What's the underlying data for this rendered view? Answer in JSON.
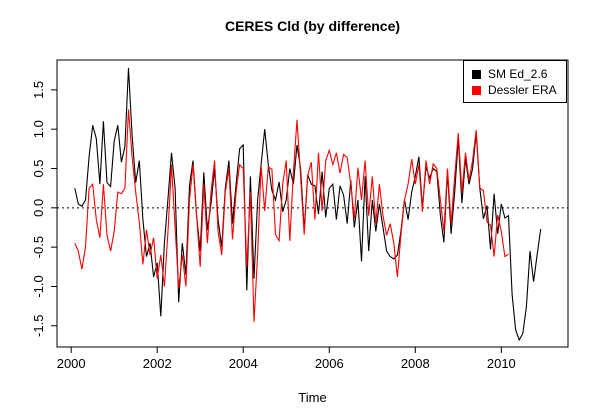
{
  "chart_data": {
    "type": "line",
    "title": "CERES Cld (by difference)",
    "xlabel": "Time",
    "ylabel": "",
    "grid": false,
    "legend_position": "top-right",
    "reference_line_y": 0,
    "xlim": [
      1999.67,
      2011.55
    ],
    "ylim": [
      -1.77,
      1.88
    ],
    "x_ticks": [
      2000,
      2002,
      2004,
      2006,
      2008,
      2010
    ],
    "y_ticks": [
      -1.5,
      -1.0,
      -0.5,
      0.0,
      0.5,
      1.0,
      1.5
    ],
    "x_start": 2000.083,
    "x_step": 0.08333,
    "series": [
      {
        "name": "SM Ed_2.6",
        "color": "#000000",
        "values": [
          0.25,
          0.05,
          0.02,
          0.1,
          0.65,
          1.05,
          0.88,
          0.3,
          1.1,
          0.32,
          0.27,
          0.85,
          1.05,
          0.58,
          0.78,
          1.78,
          0.92,
          0.32,
          0.6,
          -0.15,
          -0.62,
          -0.45,
          -0.88,
          -0.7,
          -1.38,
          -0.45,
          0.12,
          0.7,
          0.25,
          -1.2,
          -0.45,
          -0.85,
          0.28,
          0.6,
          -0.1,
          -0.55,
          0.45,
          -0.28,
          0.05,
          0.5,
          -0.15,
          -0.5,
          0.25,
          0.6,
          -0.2,
          0.3,
          0.75,
          0.8,
          -1.05,
          0.4,
          -0.9,
          0.1,
          0.55,
          1.0,
          0.55,
          0.22,
          0.1,
          0.33,
          -0.05,
          0.1,
          0.5,
          0.3,
          0.8,
          0.5,
          -0.28,
          0.42,
          0.3,
          0.28,
          -0.08,
          0.46,
          -0.12,
          0.25,
          0.3,
          -0.15,
          0.28,
          0.16,
          -0.2,
          0.35,
          -0.25,
          0.1,
          -0.68,
          0.4,
          -0.55,
          0.1,
          -0.3,
          0.05,
          -0.25,
          -0.55,
          -0.62,
          -0.65,
          -0.6,
          -0.3,
          0.1,
          -0.15,
          0.2,
          0.4,
          0.65,
          0.0,
          0.52,
          0.38,
          0.5,
          0.46,
          -0.1,
          -0.44,
          0.46,
          -0.33,
          0.2,
          0.88,
          0.06,
          0.63,
          0.3,
          0.5,
          0.95,
          0.25,
          -0.14,
          0.03,
          -0.53,
          0.18,
          -0.33,
          0.05,
          -0.13,
          -0.1,
          -1.1,
          -1.55,
          -1.68,
          -1.6,
          -1.26,
          -0.55,
          -0.94,
          -0.6,
          -0.27
        ]
      },
      {
        "name": "Dessler ERA",
        "color": "#FF0000",
        "values": [
          -0.45,
          -0.55,
          -0.78,
          -0.5,
          0.25,
          0.3,
          -0.15,
          -0.38,
          0.3,
          -0.35,
          -0.55,
          -0.3,
          0.2,
          0.18,
          0.25,
          1.25,
          0.65,
          0.2,
          -0.18,
          -0.72,
          -0.28,
          -0.6,
          -0.38,
          -0.9,
          -0.6,
          -1.0,
          -0.3,
          0.55,
          -0.25,
          -1.02,
          -0.6,
          -1.0,
          0.1,
          0.55,
          -0.1,
          -0.75,
          0.3,
          -0.45,
          0.2,
          0.6,
          -0.3,
          -0.6,
          0.2,
          0.5,
          -0.4,
          0.2,
          0.55,
          0.5,
          -0.75,
          0.2,
          -1.45,
          -0.6,
          0.54,
          -0.04,
          0.52,
          0.49,
          -0.34,
          -0.42,
          0.3,
          0.6,
          -0.42,
          0.45,
          1.12,
          0.4,
          -0.34,
          0.41,
          0.58,
          -0.15,
          0.7,
          -0.04,
          0.6,
          0.73,
          0.55,
          0.7,
          0.44,
          0.68,
          0.64,
          0.3,
          -0.14,
          0.51,
          0.1,
          0.6,
          -0.1,
          0.4,
          -0.2,
          0.3,
          -0.1,
          -0.35,
          -0.2,
          -0.45,
          -0.88,
          -0.35,
          0.1,
          0.3,
          0.62,
          0.3,
          0.55,
          -0.05,
          0.6,
          0.3,
          0.56,
          0.5,
          0.1,
          -0.3,
          0.5,
          -0.2,
          0.4,
          0.95,
          0.2,
          0.7,
          0.35,
          0.6,
          0.99,
          0.25,
          0.22,
          -0.18,
          -0.22,
          -0.62,
          -0.09,
          -0.3,
          -0.62,
          -0.59
        ]
      }
    ]
  }
}
